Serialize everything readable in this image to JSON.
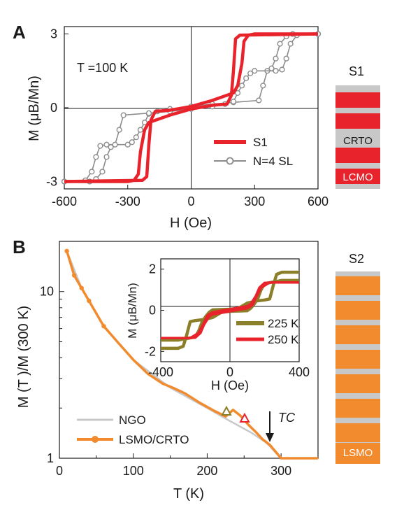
{
  "colors": {
    "red": "#e8232b",
    "gray": "#8c8c8c",
    "orange": "#f28a2e",
    "olive": "#8c7f2a",
    "ngo": "#c8c8c8",
    "spacer": "#c8c8c8",
    "black": "#1a1a1a"
  },
  "panelA": {
    "label": "A",
    "annotation": "T =100 K",
    "ylabel": "M (μB/Mn)",
    "xlabel": "H (Oe)",
    "xticks": [
      "-600",
      "-300",
      "0",
      "300",
      "600"
    ],
    "yticks": [
      "-3",
      "0",
      "3"
    ],
    "legend": [
      "S1",
      "N=4 SL"
    ],
    "stack": {
      "title": "S1",
      "labels": [
        "CRTO",
        "LCMO"
      ]
    }
  },
  "panelB": {
    "label": "B",
    "ylabel": "M (T )/M (300 K)",
    "xlabel": "T (K)",
    "xticks": [
      "0",
      "100",
      "200",
      "300"
    ],
    "yticks": [
      "10",
      "1"
    ],
    "legend": [
      "NGO",
      "LSMO/CRTO"
    ],
    "tc_label": "TC",
    "inset": {
      "ylabel": "M (μB/Mn)",
      "xlabel": "H (Oe)",
      "xticks": [
        "-400",
        "0",
        "400"
      ],
      "yticks": [
        "2",
        "0",
        "-2"
      ],
      "legend": [
        "225 K",
        "250 K"
      ]
    },
    "stack": {
      "title": "S2",
      "labels": [
        "LSMO"
      ]
    }
  },
  "chart_data": [
    {
      "type": "line",
      "title": "",
      "annotation": "T =100 K",
      "xlabel": "H (Oe)",
      "ylabel": "M (μB/Mn)",
      "xlim": [
        -600,
        600
      ],
      "ylim": [
        -3.3,
        3.3
      ],
      "grid": false,
      "legend_position": "bottom-right",
      "series": [
        {
          "name": "S1",
          "branches": [
            {
              "x": [
                600,
                300,
                270,
                250,
                240,
                220,
                200,
                100,
                0,
                -100,
                -170,
                -190,
                -200,
                -210,
                -230,
                -600
              ],
              "y": [
                3.0,
                3.0,
                2.95,
                2.7,
                1.8,
                0.9,
                0.6,
                0.3,
                0.05,
                -0.1,
                -0.15,
                -0.5,
                -1.5,
                -2.8,
                -2.95,
                -3.0
              ]
            },
            {
              "x": [
                -600,
                -300,
                -270,
                -250,
                -240,
                -220,
                -200,
                -100,
                0,
                100,
                170,
                190,
                200,
                210,
                230,
                600
              ],
              "y": [
                -3.0,
                -3.0,
                -2.95,
                -2.7,
                -1.8,
                -0.9,
                -0.6,
                -0.3,
                -0.05,
                0.1,
                0.15,
                0.5,
                1.5,
                2.8,
                2.95,
                3.0
              ]
            }
          ]
        },
        {
          "name": "N=4 SL",
          "branches": [
            {
              "x": [
                600,
                480,
                450,
                420,
                400,
                380,
                360,
                340,
                320,
                200,
                100,
                0,
                -100,
                -160,
                -200,
                -220,
                -240,
                -260,
                -280,
                -300,
                -400,
                -430,
                -450,
                -470,
                -500,
                -600
              ],
              "y": [
                3.0,
                3.0,
                2.9,
                2.6,
                2.0,
                1.6,
                1.5,
                0.9,
                0.3,
                0.22,
                0.15,
                0.05,
                -0.05,
                -0.15,
                -0.25,
                -0.6,
                -0.9,
                -1.2,
                -1.4,
                -1.5,
                -1.5,
                -1.55,
                -2.0,
                -2.6,
                -2.95,
                -3.0
              ]
            },
            {
              "x": [
                -600,
                -480,
                -450,
                -420,
                -400,
                -380,
                -360,
                -340,
                -320,
                -200,
                -100,
                0,
                100,
                160,
                200,
                220,
                240,
                260,
                280,
                300,
                400,
                430,
                450,
                470,
                500,
                600
              ],
              "y": [
                -3.0,
                -3.0,
                -2.9,
                -2.6,
                -2.0,
                -1.6,
                -1.5,
                -0.9,
                -0.3,
                -0.22,
                -0.15,
                -0.05,
                0.05,
                0.15,
                0.25,
                0.6,
                0.9,
                1.2,
                1.4,
                1.5,
                1.5,
                1.55,
                2.0,
                2.6,
                2.95,
                3.0
              ]
            }
          ]
        }
      ]
    },
    {
      "type": "line",
      "title": "",
      "xlabel": "T (K)",
      "ylabel": "M (T )/M (300 K)",
      "xlim": [
        0,
        350
      ],
      "ylim": [
        1,
        20
      ],
      "yscale": "log",
      "grid": false,
      "legend_position": "bottom-left",
      "series": [
        {
          "name": "NGO",
          "x": [
            10,
            30,
            60,
            100,
            150,
            200,
            230,
            260,
            280,
            300,
            320,
            350
          ],
          "y": [
            17.5,
            10.5,
            6.2,
            3.9,
            2.65,
            2.0,
            1.68,
            1.42,
            1.24,
            1.0,
            1.0,
            1.0
          ]
        },
        {
          "name": "LSMO/CRTO",
          "x": [
            10,
            20,
            30,
            40,
            60,
            80,
            100,
            120,
            140,
            155,
            170,
            190,
            210,
            225,
            235,
            245,
            255,
            265,
            275,
            285,
            300,
            320,
            340,
            350
          ],
          "y": [
            17.5,
            12.5,
            10.5,
            8.8,
            6.2,
            4.9,
            3.9,
            3.2,
            2.8,
            2.63,
            2.45,
            2.15,
            1.92,
            1.78,
            1.95,
            1.8,
            1.6,
            1.45,
            1.3,
            1.2,
            1.0,
            1.0,
            1.0,
            1.0
          ]
        }
      ],
      "annotations": [
        {
          "text": "TC",
          "x": 285,
          "y": 1.25,
          "marker": "down-arrow"
        },
        {
          "marker": "triangle-open",
          "color": "olive",
          "x": 225,
          "y": 1.83
        },
        {
          "marker": "triangle-open",
          "color": "red",
          "x": 250,
          "y": 1.65
        }
      ]
    },
    {
      "type": "line",
      "title": "",
      "xlabel": "H (Oe)",
      "ylabel": "M (μB/Mn)",
      "xlim": [
        -400,
        400
      ],
      "ylim": [
        -2.5,
        2.5
      ],
      "grid": false,
      "legend_position": "bottom-right",
      "series": [
        {
          "name": "225 K",
          "branches": [
            {
              "x": [
                400,
                300,
                270,
                250,
                230,
                200,
                150,
                100,
                50,
                0,
                -100,
                -120,
                -140,
                -160,
                -180,
                -200,
                -300,
                -400
              ],
              "y": [
                1.85,
                1.85,
                1.75,
                1.2,
                0.55,
                0.5,
                0.45,
                0.35,
                0.1,
                0.05,
                0.02,
                -0.1,
                -0.3,
                -0.55,
                -1.0,
                -1.3,
                -1.45,
                -1.45
              ]
            },
            {
              "x": [
                -400,
                -300,
                -270,
                -250,
                -230,
                -200,
                -150,
                -100,
                -50,
                0,
                100,
                120,
                140,
                160,
                180,
                200,
                300,
                400
              ],
              "y": [
                -1.85,
                -1.85,
                -1.75,
                -1.2,
                -0.55,
                -0.5,
                -0.45,
                -0.35,
                -0.1,
                -0.05,
                -0.02,
                0.1,
                0.3,
                0.55,
                1.0,
                1.3,
                1.45,
                1.45
              ]
            }
          ]
        },
        {
          "name": "250 K",
          "branches": [
            {
              "x": [
                400,
                250,
                200,
                170,
                150,
                120,
                100,
                0,
                -100,
                -130,
                -150,
                -180,
                -230,
                -400
              ],
              "y": [
                1.35,
                1.35,
                1.33,
                1.1,
                0.7,
                0.3,
                0.2,
                0.05,
                -0.1,
                -0.25,
                -0.6,
                -1.1,
                -1.35,
                -1.35
              ]
            },
            {
              "x": [
                -400,
                -250,
                -200,
                -170,
                -150,
                -120,
                -100,
                0,
                100,
                130,
                150,
                180,
                230,
                400
              ],
              "y": [
                -1.35,
                -1.35,
                -1.33,
                -1.1,
                -0.7,
                -0.3,
                -0.2,
                -0.05,
                0.1,
                0.25,
                0.6,
                1.1,
                1.35,
                1.35
              ]
            }
          ]
        }
      ]
    }
  ]
}
